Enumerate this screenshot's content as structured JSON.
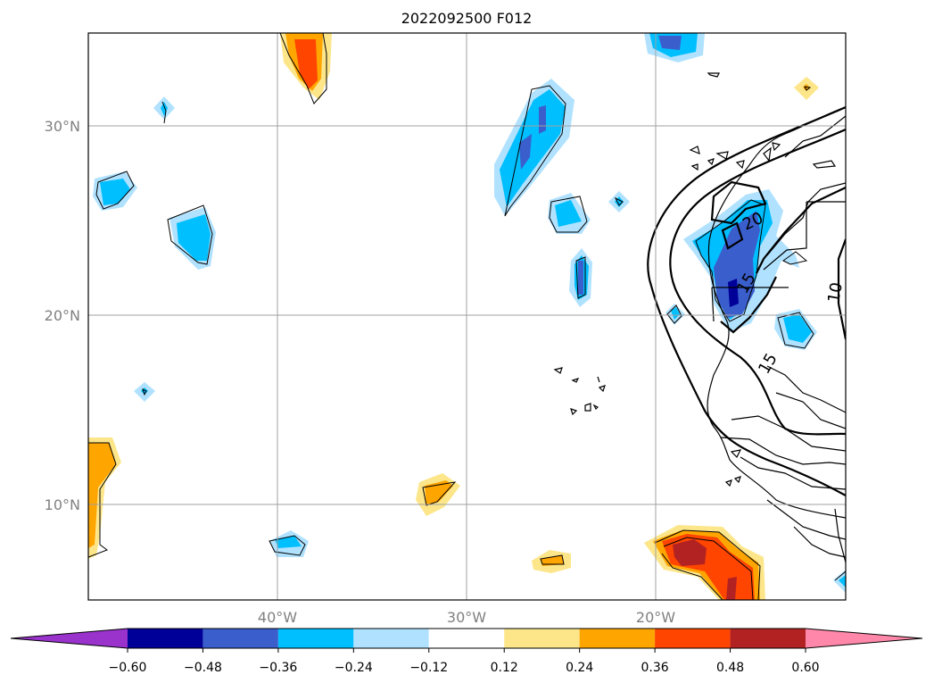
{
  "title": "2022092500 F012",
  "lat_labels": [
    "30°N",
    "20°N",
    "10°N"
  ],
  "lon_labels": [
    "40°W",
    "30°W",
    "20°W"
  ],
  "contour_labels": [
    "20",
    "15",
    "15",
    "10"
  ],
  "colorbar": {
    "tick_labels": [
      "−0.60",
      "−0.48",
      "−0.36",
      "−0.24",
      "−0.12",
      "0.12",
      "0.24",
      "0.36",
      "0.48",
      "0.60"
    ],
    "colors": [
      "#9933cc",
      "#000099",
      "#3a5fcd",
      "#00bfff",
      "#b0e2ff",
      "#ffffff",
      "#fde68a",
      "#ffa500",
      "#ff4500",
      "#b22222",
      "#ff88aa"
    ]
  },
  "extent": {
    "lon": [
      -50,
      -10
    ],
    "lat": [
      5,
      35
    ]
  }
}
